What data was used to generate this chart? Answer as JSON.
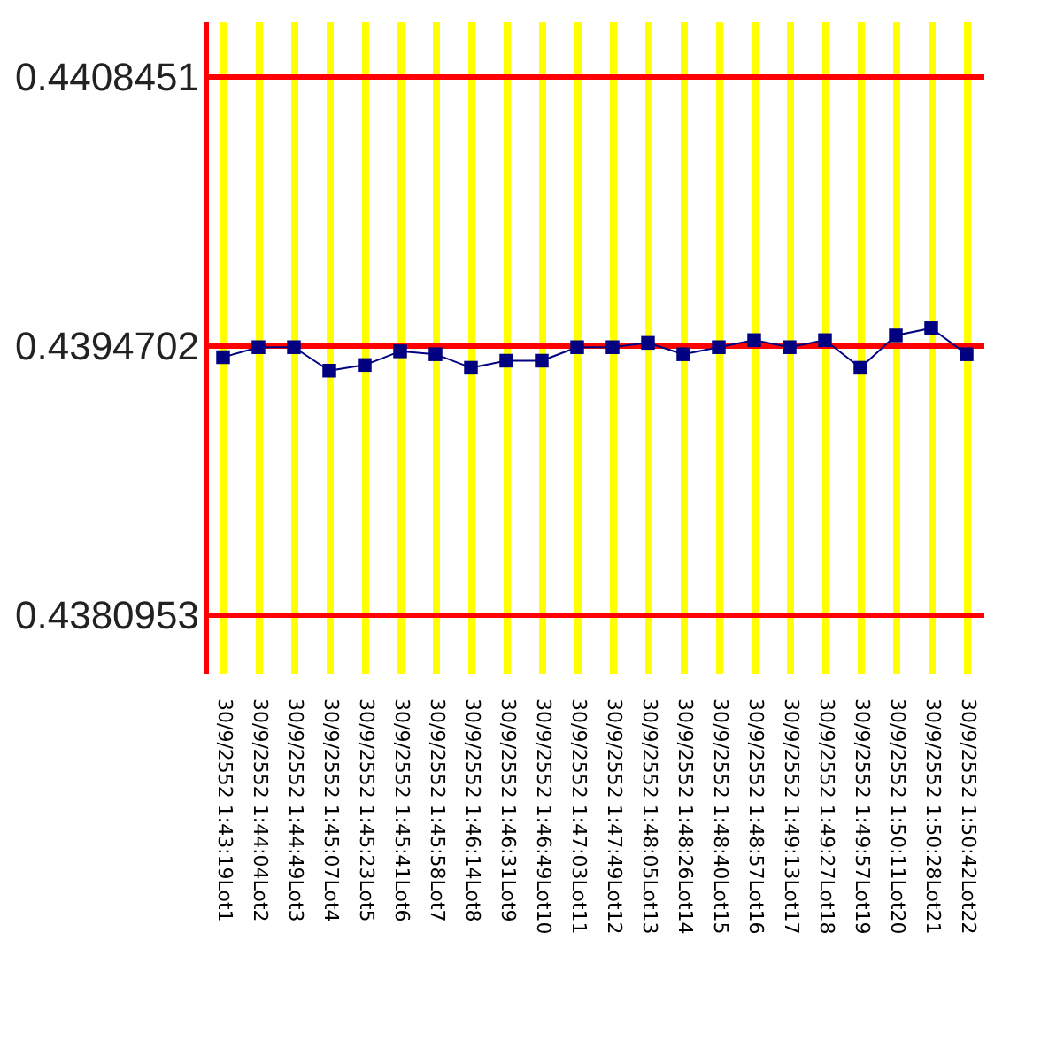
{
  "chart_data": {
    "type": "line",
    "categories": [
      "30/9/2552 1:43:19Lot1",
      "30/9/2552 1:44:04Lot2",
      "30/9/2552 1:44:49Lot3",
      "30/9/2552 1:45:07Lot4",
      "30/9/2552 1:45:23Lot5",
      "30/9/2552 1:45:41Lot6",
      "30/9/2552 1:45:58Lot7",
      "30/9/2552 1:46:14Lot8",
      "30/9/2552 1:46:31Lot9",
      "30/9/2552 1:46:49Lot10",
      "30/9/2552 1:47:03Lot11",
      "30/9/2552 1:47:49Lot12",
      "30/9/2552 1:48:05Lot13",
      "30/9/2552 1:48:26Lot14",
      "30/9/2552 1:48:40Lot15",
      "30/9/2552 1:48:57Lot16",
      "30/9/2552 1:49:13Lot17",
      "30/9/2552 1:49:27Lot18",
      "30/9/2552 1:49:57Lot19",
      "30/9/2552 1:50:11Lot20",
      "30/9/2552 1:50:28Lot21",
      "30/9/2552 1:50:42Lot22"
    ],
    "series": [
      {
        "color": "#000080",
        "values": [
          0.439413,
          0.439464,
          0.439464,
          0.439344,
          0.439373,
          0.439443,
          0.439428,
          0.439359,
          0.439395,
          0.439395,
          0.439464,
          0.439464,
          0.439486,
          0.439428,
          0.439464,
          0.4395,
          0.439464,
          0.4395,
          0.439359,
          0.439524,
          0.439561,
          0.439428
        ]
      }
    ],
    "ylim": [
      0.4378,
      0.44113
    ],
    "yticks": [
      0.4380953,
      0.4394702,
      0.4408451
    ],
    "grid": true,
    "marker": "square",
    "line_style": "solid",
    "legend": false
  }
}
